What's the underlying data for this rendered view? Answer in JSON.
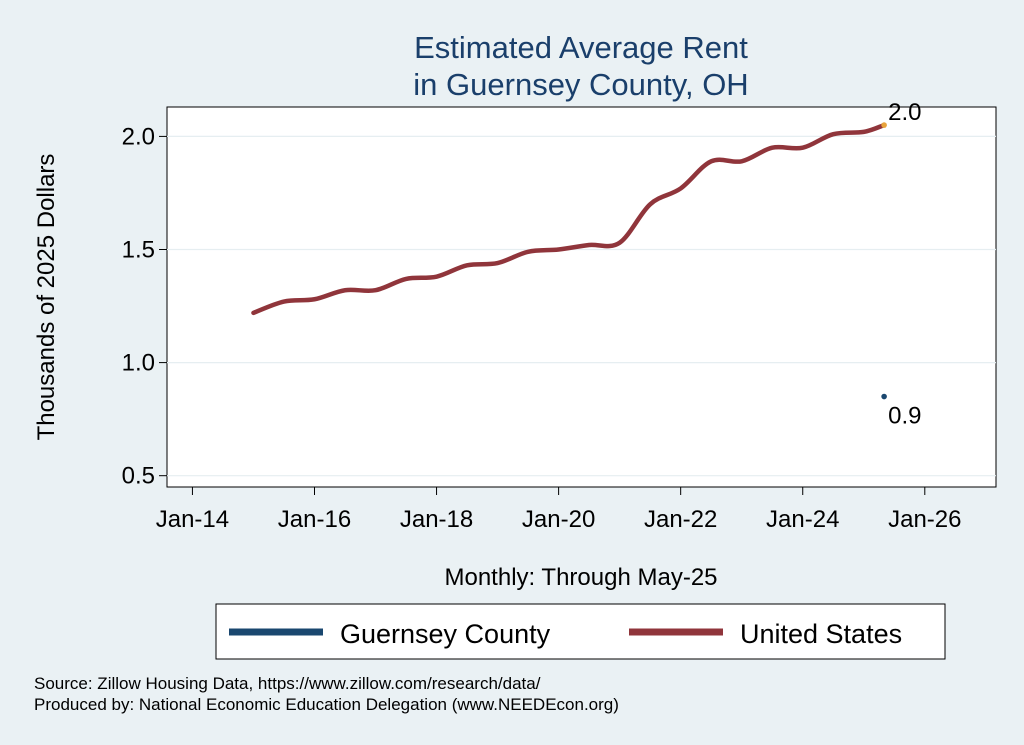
{
  "chart_data": {
    "type": "line",
    "title_lines": [
      "Estimated Average Rent",
      "in Guernsey County, OH"
    ],
    "xlabel": "Monthly: Through May-25",
    "ylabel": "Thousands of 2025 Dollars",
    "x_tick_labels": [
      "Jan-14",
      "Jan-16",
      "Jan-18",
      "Jan-20",
      "Jan-22",
      "Jan-24",
      "Jan-26"
    ],
    "y_tick_labels": [
      "0.5",
      "1.0",
      "1.5",
      "2.0"
    ],
    "xlim": [
      "2013-08",
      "2027-03"
    ],
    "ylim": [
      0.45,
      2.13
    ],
    "grid": true,
    "legend_position": "bottom",
    "series": [
      {
        "name": "Guernsey County",
        "color": "#1a476f",
        "x": [
          "2025-05"
        ],
        "values": [
          0.85
        ],
        "end_label": "0.9"
      },
      {
        "name": "United States",
        "color": "#90353b",
        "x": [
          "2015-01",
          "2015-07",
          "2016-01",
          "2016-07",
          "2017-01",
          "2017-07",
          "2018-01",
          "2018-07",
          "2019-01",
          "2019-07",
          "2020-01",
          "2020-07",
          "2021-01",
          "2021-07",
          "2022-01",
          "2022-07",
          "2023-01",
          "2023-07",
          "2024-01",
          "2024-07",
          "2025-01",
          "2025-05"
        ],
        "values": [
          1.22,
          1.27,
          1.28,
          1.32,
          1.32,
          1.37,
          1.38,
          1.43,
          1.44,
          1.49,
          1.5,
          1.52,
          1.53,
          1.7,
          1.77,
          1.89,
          1.89,
          1.95,
          1.95,
          2.01,
          2.02,
          2.05
        ],
        "end_label": "2.0",
        "end_marker_color": "#e8a33c"
      }
    ]
  },
  "footer": {
    "source": "Source: Zillow Housing Data, https://www.zillow.com/research/data/",
    "produced": "Produced by: National Economic Education Delegation (www.NEEDEcon.org)"
  }
}
